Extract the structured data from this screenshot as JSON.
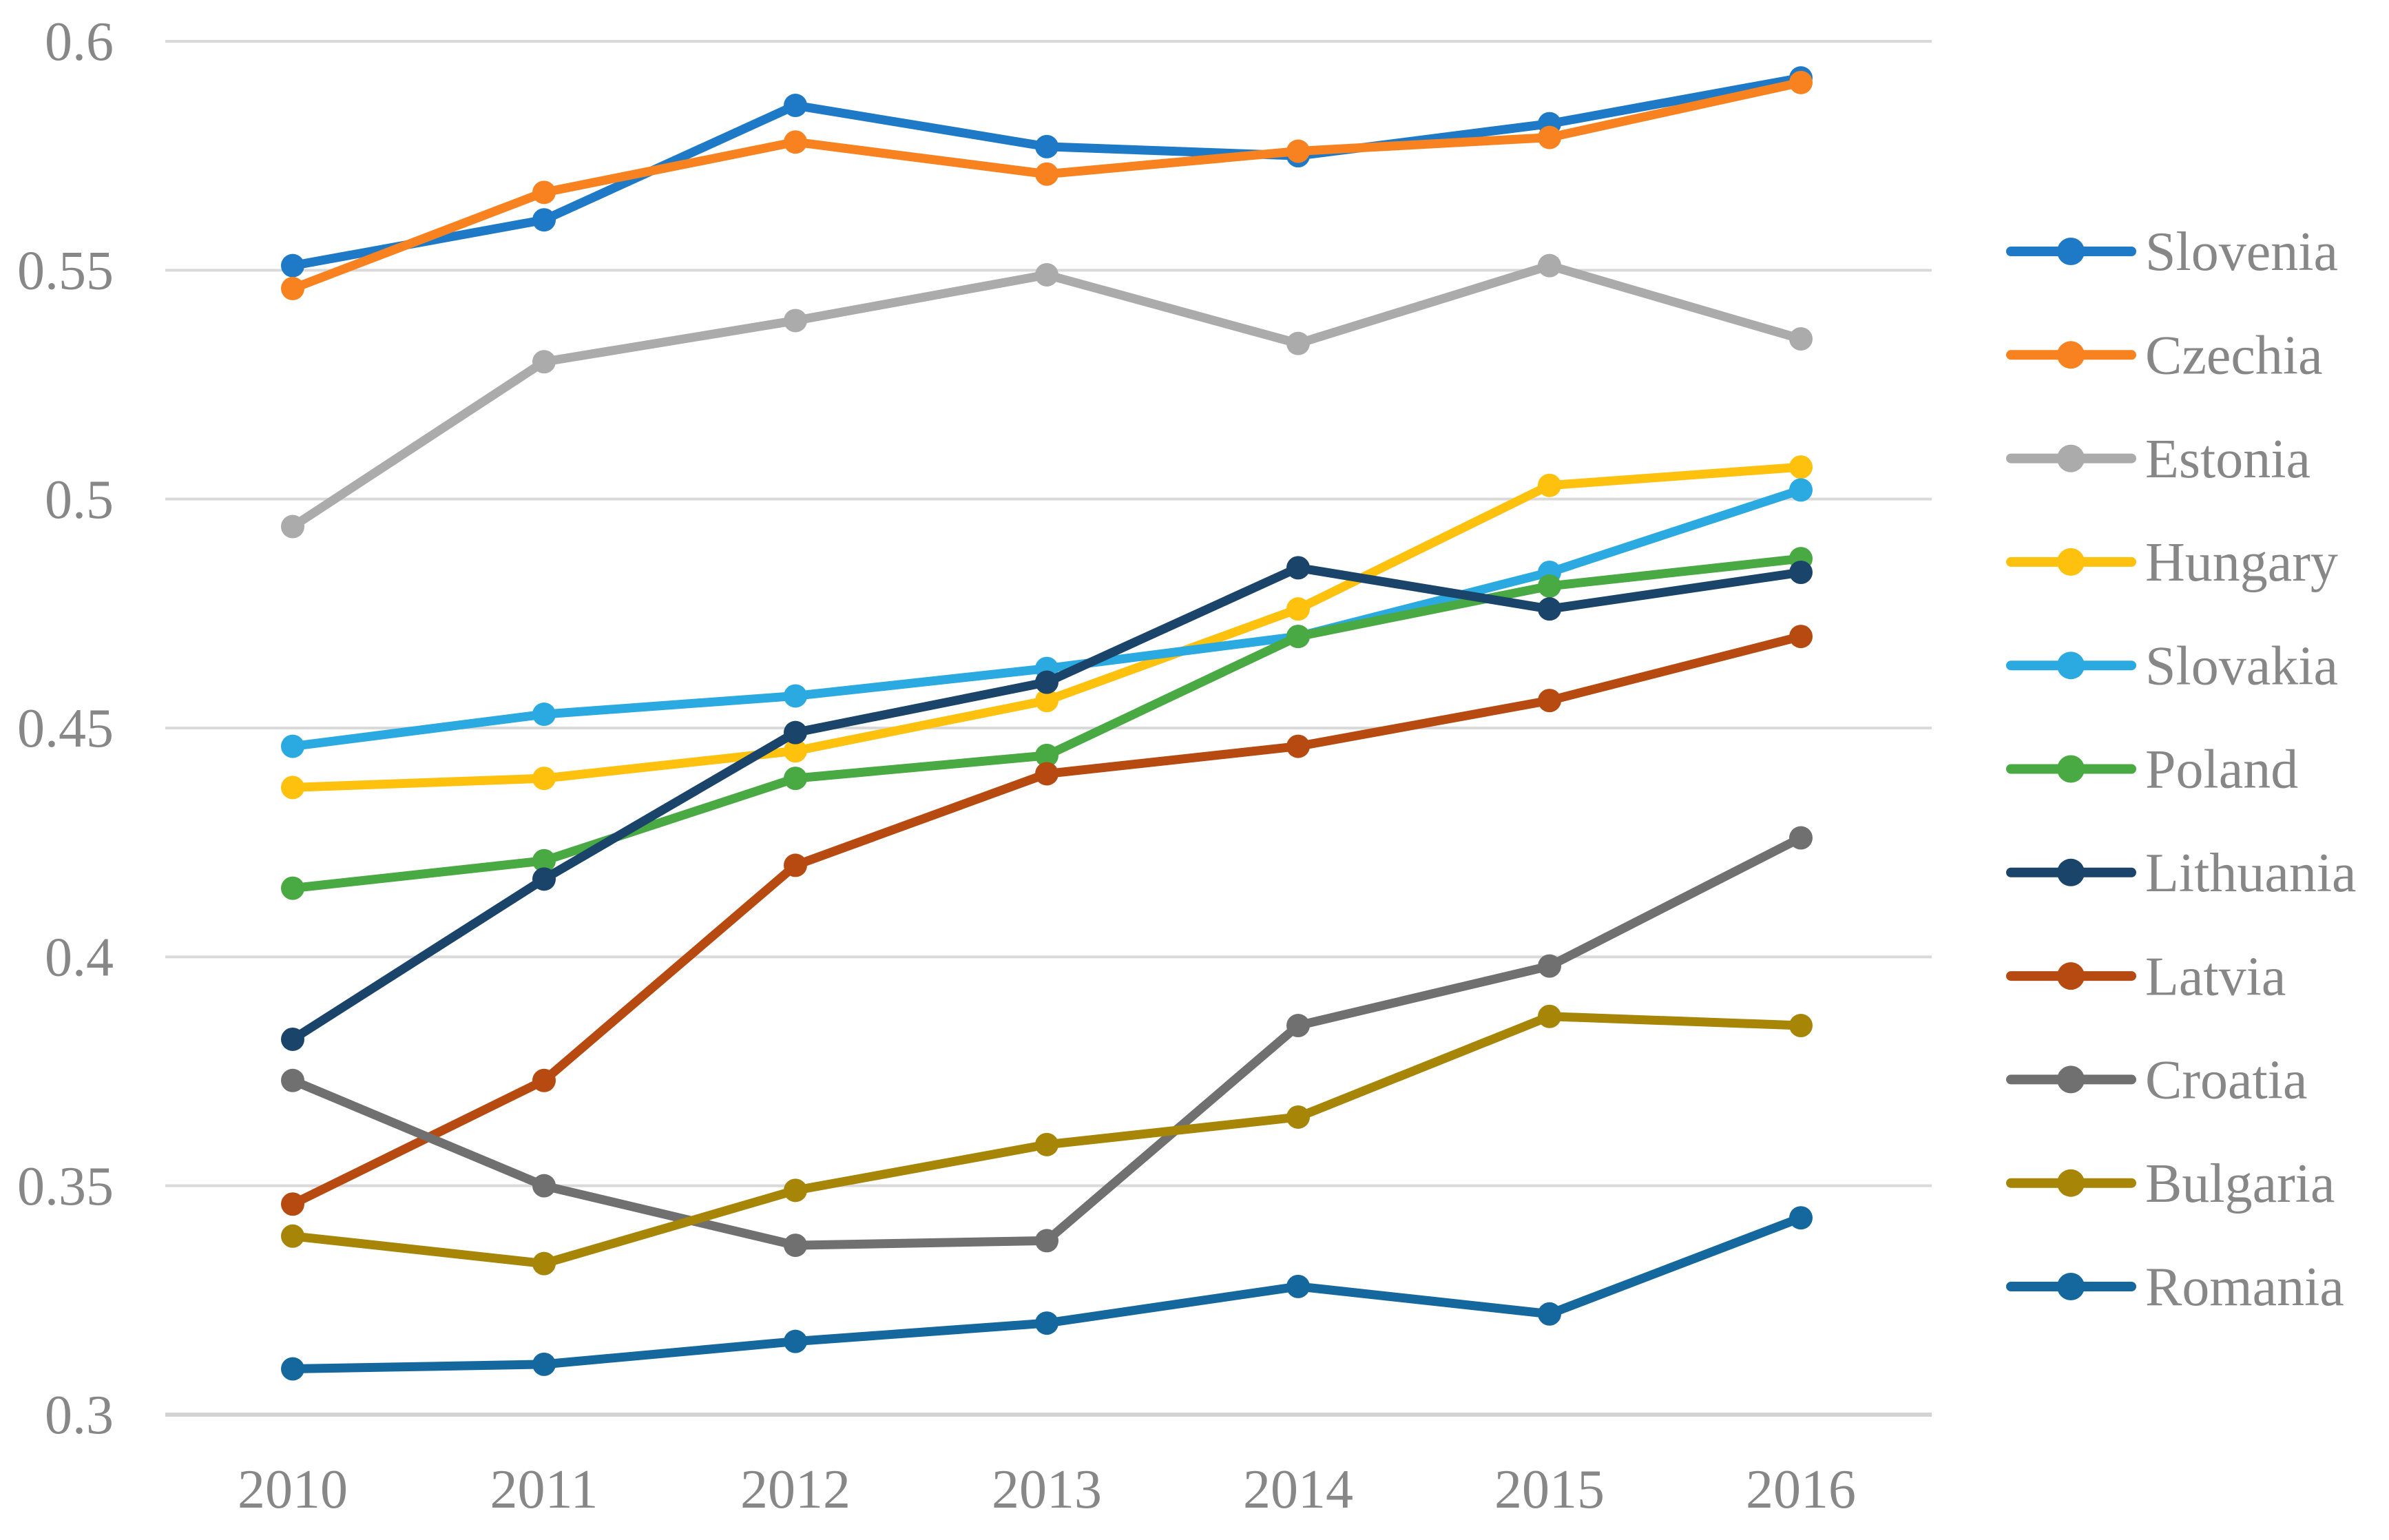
{
  "style": {
    "background_color": "#FFFFFF",
    "text_color": "#878787",
    "gridline_color": "#D9D9D9",
    "axis_line_color": "#D3D3D3"
  },
  "chart_data": {
    "type": "line",
    "title": "",
    "xlabel": "",
    "ylabel": "",
    "x": [
      2010,
      2011,
      2012,
      2013,
      2014,
      2015,
      2016
    ],
    "x_tick_labels": [
      "2010",
      "2011",
      "2012",
      "2013",
      "2014",
      "2015",
      "2016"
    ],
    "ylim": [
      0.3,
      0.6
    ],
    "ytick_step": 0.05,
    "y_ticks": [
      {
        "value": 0.6,
        "label": "0.6"
      },
      {
        "value": 0.55,
        "label": "0.55"
      },
      {
        "value": 0.5,
        "label": "0.5"
      },
      {
        "value": 0.45,
        "label": "0.45"
      },
      {
        "value": 0.4,
        "label": "0.4"
      },
      {
        "value": 0.35,
        "label": "0.35"
      },
      {
        "value": 0.3,
        "label": "0.3"
      }
    ],
    "grid": "horizontal",
    "legend_position": "right",
    "marker": "circle",
    "series": [
      {
        "name": "Slovenia",
        "color": "#1E7AC6",
        "values": [
          0.551,
          0.561,
          0.586,
          0.577,
          0.575,
          0.582,
          0.592
        ]
      },
      {
        "name": "Czechia",
        "color": "#F8821F",
        "values": [
          0.546,
          0.567,
          0.578,
          0.571,
          0.576,
          0.579,
          0.591
        ]
      },
      {
        "name": "Estonia",
        "color": "#ABABAB",
        "values": [
          0.494,
          0.53,
          0.539,
          0.549,
          0.534,
          0.551,
          0.535
        ]
      },
      {
        "name": "Hungary",
        "color": "#FEC10D",
        "values": [
          0.437,
          0.439,
          0.445,
          0.456,
          0.476,
          0.503,
          0.507
        ]
      },
      {
        "name": "Slovakia",
        "color": "#2BA9E1",
        "values": [
          0.446,
          0.453,
          0.457,
          0.463,
          0.47,
          0.484,
          0.502
        ]
      },
      {
        "name": "Poland",
        "color": "#49A942",
        "values": [
          0.415,
          0.421,
          0.439,
          0.444,
          0.47,
          0.481,
          0.487
        ]
      },
      {
        "name": "Lithuania",
        "color": "#1A4469",
        "values": [
          0.382,
          0.417,
          0.449,
          0.46,
          0.485,
          0.476,
          0.484
        ]
      },
      {
        "name": "Latvia",
        "color": "#B74A10",
        "values": [
          0.346,
          0.373,
          0.42,
          0.44,
          0.446,
          0.456,
          0.47
        ]
      },
      {
        "name": "Croatia",
        "color": "#707070",
        "values": [
          0.373,
          0.35,
          0.337,
          0.338,
          0.385,
          0.398,
          0.426
        ]
      },
      {
        "name": "Bulgaria",
        "color": "#A68507",
        "values": [
          0.339,
          0.333,
          0.349,
          0.359,
          0.365,
          0.387,
          0.385
        ]
      },
      {
        "name": "Romania",
        "color": "#15689E",
        "values": [
          0.31,
          0.311,
          0.316,
          0.32,
          0.328,
          0.322,
          0.343
        ]
      }
    ]
  }
}
